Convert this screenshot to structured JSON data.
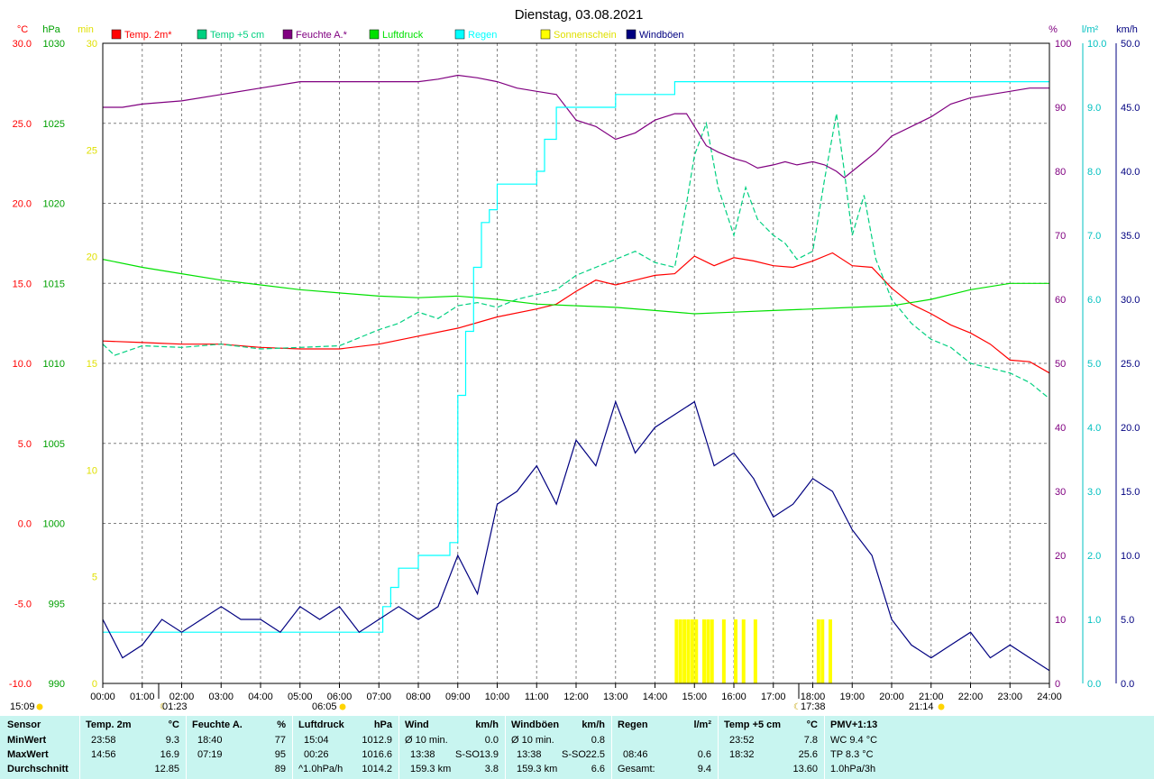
{
  "chart_data": {
    "type": "line",
    "title": "Dienstag, 03.08.2021",
    "x_ticks": [
      "00:00",
      "01:00",
      "02:00",
      "03:00",
      "04:00",
      "05:00",
      "06:00",
      "07:00",
      "08:00",
      "09:00",
      "10:00",
      "11:00",
      "12:00",
      "13:00",
      "14:00",
      "15:00",
      "16:00",
      "17:00",
      "18:00",
      "19:00",
      "20:00",
      "21:00",
      "22:00",
      "23:00",
      "24:00"
    ],
    "axes": {
      "temp": {
        "unit": "°C",
        "min": -10,
        "max": 30,
        "ticks": [
          "-10.0",
          "-5.0",
          "0.0",
          "5.0",
          "10.0",
          "15.0",
          "20.0",
          "25.0",
          "30.0"
        ],
        "color": "#ff0000"
      },
      "pressure": {
        "unit": "hPa",
        "min": 990,
        "max": 1030,
        "ticks": [
          "990",
          "995",
          "1000",
          "1005",
          "1010",
          "1015",
          "1020",
          "1025",
          "1030"
        ],
        "color": "#00a000"
      },
      "sun": {
        "unit": "min",
        "min": 0,
        "max": 30,
        "ticks": [
          "0",
          "5",
          "10",
          "15",
          "20",
          "25",
          "30"
        ],
        "color": "#e0e000"
      },
      "humidity": {
        "unit": "%",
        "min": 0,
        "max": 100,
        "ticks": [
          "0",
          "10",
          "20",
          "30",
          "40",
          "50",
          "60",
          "70",
          "80",
          "90",
          "100"
        ],
        "color": "#800080"
      },
      "rain": {
        "unit": "l/m²",
        "min": 0,
        "max": 10,
        "ticks": [
          "0.0",
          "1.0",
          "2.0",
          "3.0",
          "4.0",
          "5.0",
          "6.0",
          "7.0",
          "8.0",
          "9.0",
          "10.0"
        ],
        "color": "#00c0c0"
      },
      "wind": {
        "unit": "km/h",
        "min": 0,
        "max": 50,
        "ticks": [
          "0.0",
          "5.0",
          "10.0",
          "15.0",
          "20.0",
          "25.0",
          "30.0",
          "35.0",
          "40.0",
          "45.0",
          "50.0"
        ],
        "color": "#000080"
      }
    },
    "legend": [
      {
        "name": "Temp. 2m*",
        "color": "#ff0000"
      },
      {
        "name": "Temp +5 cm",
        "color": "#00d080"
      },
      {
        "name": "Feuchte A.*",
        "color": "#800080"
      },
      {
        "name": "Luftdruck",
        "color": "#00e000"
      },
      {
        "name": "Regen",
        "color": "#00ffff"
      },
      {
        "name": "Sonnenschein",
        "color": "#ffff00"
      },
      {
        "name": "Windböen",
        "color": "#000080"
      }
    ],
    "series": [
      {
        "name": "Temp. 2m*",
        "axis": "temp",
        "x": [
          0,
          1,
          2,
          3,
          4,
          5,
          6,
          7,
          8,
          9,
          10,
          11,
          11.5,
          12,
          12.5,
          13,
          13.5,
          14,
          14.5,
          15,
          15.5,
          16,
          16.5,
          17,
          17.5,
          18,
          18.5,
          19,
          19.5,
          20,
          20.5,
          21,
          21.5,
          22,
          22.5,
          23,
          23.5,
          24
        ],
        "y": [
          11.4,
          11.3,
          11.2,
          11.2,
          11.0,
          10.9,
          10.9,
          11.2,
          11.7,
          12.2,
          12.9,
          13.4,
          13.7,
          14.5,
          15.2,
          14.9,
          15.2,
          15.5,
          15.6,
          16.7,
          16.1,
          16.6,
          16.4,
          16.1,
          16.0,
          16.4,
          16.9,
          16.1,
          16.0,
          14.7,
          13.7,
          13.1,
          12.4,
          11.9,
          11.2,
          10.2,
          10.1,
          9.4
        ]
      },
      {
        "name": "Temp +5 cm",
        "axis": "temp",
        "x": [
          0,
          0.3,
          1,
          2,
          3,
          4,
          5,
          6,
          7,
          7.5,
          8,
          8.5,
          9,
          9.5,
          10,
          10.5,
          11,
          11.5,
          12,
          12.5,
          13,
          13.5,
          14,
          14.5,
          14.8,
          15,
          15.3,
          15.6,
          16,
          16.3,
          16.6,
          17,
          17.3,
          17.6,
          18,
          18.3,
          18.6,
          18.8,
          19,
          19.3,
          19.6,
          20,
          20.5,
          21,
          21.5,
          22,
          22.5,
          23,
          23.5,
          24
        ],
        "y": [
          11.2,
          10.5,
          11.1,
          11.0,
          11.2,
          10.9,
          11.0,
          11.1,
          12.1,
          12.5,
          13.2,
          12.8,
          13.6,
          13.8,
          13.5,
          14.0,
          14.3,
          14.6,
          15.5,
          16.0,
          16.5,
          17.0,
          16.3,
          16.0,
          20.0,
          23.0,
          25.0,
          21.0,
          18.0,
          21.0,
          19.0,
          18.0,
          17.5,
          16.5,
          17.0,
          21.5,
          25.6,
          22.0,
          18.0,
          20.5,
          16.5,
          14.0,
          12.5,
          11.5,
          11.0,
          10.0,
          9.7,
          9.4,
          8.8,
          7.8
        ]
      },
      {
        "name": "Feuchte A.*",
        "axis": "humidity",
        "x": [
          0,
          0.5,
          1,
          2,
          3,
          4,
          5,
          6,
          7,
          7.5,
          8,
          8.5,
          9,
          9.5,
          10,
          10.5,
          11,
          11.5,
          12,
          12.5,
          13,
          13.5,
          14,
          14.5,
          14.8,
          15,
          15.3,
          15.6,
          16,
          16.3,
          16.6,
          17,
          17.3,
          17.6,
          18,
          18.3,
          18.6,
          18.8,
          19,
          19.3,
          19.6,
          20,
          20.5,
          21,
          21.5,
          22,
          22.5,
          23,
          23.5,
          24
        ],
        "y": [
          90.0,
          90.0,
          90.5,
          91.0,
          92.0,
          93.0,
          94.0,
          94.0,
          94.0,
          94.0,
          94.0,
          94.4,
          95.0,
          94.6,
          94.0,
          93.0,
          92.5,
          92.0,
          88.0,
          87.0,
          85.0,
          86.0,
          88.0,
          89.0,
          89.0,
          87.0,
          84.0,
          83.0,
          82.0,
          81.5,
          80.5,
          81.0,
          81.5,
          81.0,
          81.5,
          81.0,
          80.0,
          79.0,
          80.0,
          81.5,
          83.0,
          85.5,
          87.0,
          88.5,
          90.5,
          91.5,
          92.0,
          92.5,
          93.0,
          93.0
        ]
      },
      {
        "name": "Luftdruck",
        "axis": "pressure",
        "x": [
          0,
          1,
          2,
          3,
          4,
          5,
          6,
          7,
          8,
          9,
          10,
          11,
          12,
          13,
          14,
          15,
          16,
          17,
          18,
          19,
          20,
          21,
          22,
          23,
          24
        ],
        "y": [
          1016.5,
          1016.0,
          1015.6,
          1015.2,
          1014.9,
          1014.6,
          1014.4,
          1014.2,
          1014.1,
          1014.2,
          1014.0,
          1013.7,
          1013.6,
          1013.5,
          1013.3,
          1013.1,
          1013.2,
          1013.3,
          1013.4,
          1013.5,
          1013.6,
          1014.0,
          1014.6,
          1015.0,
          1015.0
        ]
      },
      {
        "name": "Regen",
        "axis": "rain",
        "x": [
          0,
          7,
          7.1,
          7.3,
          7.5,
          8,
          8.3,
          8.7,
          8.8,
          9.0,
          9.2,
          9.4,
          9.6,
          9.8,
          10.0,
          10.2,
          10.4,
          10.6,
          10.8,
          11.0,
          11.2,
          11.5,
          11.8,
          12.0,
          12.5,
          13.0,
          13.5,
          14.0,
          14.5,
          15.0,
          16,
          17,
          18,
          19,
          20,
          21,
          22,
          23,
          24
        ],
        "y": [
          0.8,
          0.8,
          1.2,
          1.5,
          1.8,
          2.0,
          2.0,
          2.0,
          2.2,
          4.5,
          5.5,
          6.5,
          7.2,
          7.4,
          7.8,
          7.8,
          7.8,
          7.8,
          7.8,
          8.0,
          8.5,
          9.0,
          9.0,
          9.0,
          9.0,
          9.2,
          9.2,
          9.2,
          9.4,
          9.4,
          9.4,
          9.4,
          9.4,
          9.4,
          9.4,
          9.4,
          9.4,
          9.4,
          9.4
        ]
      },
      {
        "name": "Windböen",
        "axis": "wind",
        "x": [
          0,
          0.5,
          1,
          1.5,
          2,
          2.5,
          3,
          3.5,
          4,
          4.5,
          5,
          5.5,
          6,
          6.5,
          7,
          7.5,
          8,
          8.5,
          9,
          9.5,
          10,
          10.5,
          11,
          11.5,
          12,
          12.5,
          13,
          13.5,
          14,
          14.5,
          15,
          15.5,
          16,
          16.5,
          17,
          17.5,
          18,
          18.5,
          19,
          19.5,
          20,
          20.5,
          21,
          21.5,
          22,
          22.5,
          23,
          23.5,
          24
        ],
        "y": [
          5,
          2,
          3,
          5,
          4,
          5,
          6,
          5,
          5,
          4,
          6,
          5,
          6,
          4,
          5,
          6,
          5,
          6,
          10,
          7,
          14,
          15,
          17,
          14,
          19,
          17,
          22,
          18,
          20,
          21,
          22,
          17,
          18,
          16,
          13,
          14,
          16,
          15,
          12,
          10,
          5,
          3,
          2,
          3,
          4,
          2,
          3,
          2,
          1
        ]
      }
    ],
    "sunshine": {
      "axis": "sun",
      "x": [
        14.5,
        14.6,
        14.7,
        14.8,
        14.9,
        15.0,
        15.2,
        15.3,
        15.4,
        15.7,
        16.0,
        16.2,
        16.5,
        18.1,
        18.2,
        18.4
      ],
      "y": [
        3,
        3,
        3,
        3,
        3,
        3,
        3,
        3,
        3,
        3,
        3,
        3,
        3,
        3,
        3,
        3
      ]
    },
    "markers": {
      "sunrise": "06:05",
      "sunset": "21:14",
      "daylength_start": "15:09",
      "moon_left": "01:23",
      "moon_right": "17:38"
    }
  },
  "table": {
    "sensor": {
      "header": "Sensor",
      "rows": [
        "MinWert",
        "MaxWert",
        "Durchschnitt"
      ]
    },
    "temp2m": {
      "header": "Temp. 2m",
      "unit": "°C",
      "min_time": "23:58",
      "min_val": "9.3",
      "max_time": "14:56",
      "max_val": "16.9",
      "avg": "12.85"
    },
    "humidity": {
      "header": "Feuchte A.",
      "unit": "%",
      "min_time": "18:40",
      "min_val": "77",
      "max_time": "07:19",
      "max_val": "95",
      "avg": "89"
    },
    "pressure": {
      "header": "Luftdruck",
      "unit": "hPa",
      "min_time": "15:04",
      "min_val": "1012.9",
      "max_time": "00:26",
      "max_val": "1016.6",
      "trend": "^1.0hPa/h",
      "avg": "1014.2"
    },
    "wind": {
      "header": "Wind",
      "unit": "km/h",
      "r1_label": "Ø 10 min.",
      "r1_val": "0.0",
      "r2_time": "13:38",
      "r2_dir": "S-SO",
      "r2_val": "13.9",
      "r3_dist": "159.3 km",
      "r3_val": "3.8"
    },
    "gusts": {
      "header": "Windböen",
      "unit": "km/h",
      "r1_label": "Ø 10 min.",
      "r1_val": "0.8",
      "r2_time": "13:38",
      "r2_dir": "S-SO",
      "r2_val": "22.5",
      "r3_dist": "159.3 km",
      "r3_val": "6.6"
    },
    "rain": {
      "header": "Regen",
      "unit": "l/m²",
      "r2_time": "08:46",
      "r2_val": "0.6",
      "r3_label": "Gesamt:",
      "r3_val": "9.4"
    },
    "temp5cm": {
      "header": "Temp +5 cm",
      "unit": "°C",
      "min_time": "23:52",
      "min_val": "7.8",
      "max_time": "18:32",
      "max_val": "25.6",
      "avg": "13.60"
    },
    "pmv": {
      "header": "PMV+1:13",
      "r1": "WC 9.4 °C",
      "r2": "TP 8.3 °C",
      "r3": "1.0hPa/3h"
    }
  }
}
